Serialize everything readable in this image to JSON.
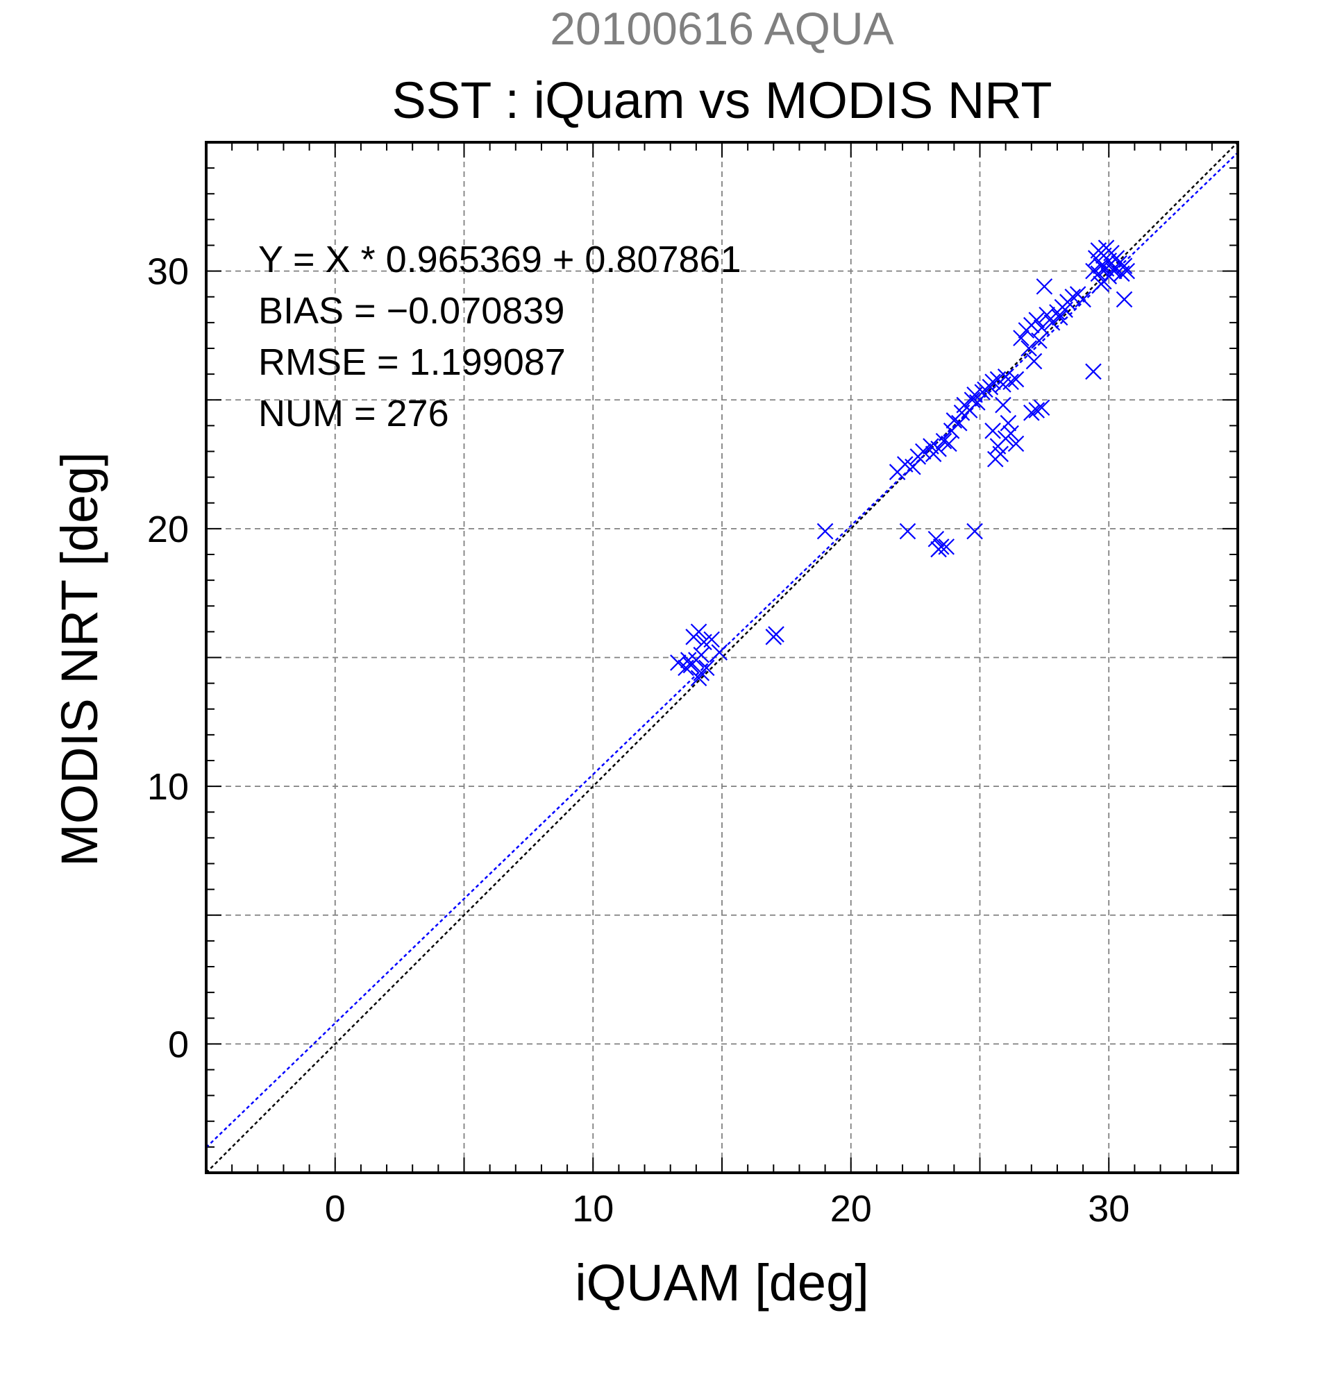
{
  "chart_data": {
    "type": "scatter",
    "supertitle": "20100616 AQUA",
    "title": "SST : iQuam vs MODIS NRT",
    "xlabel": "iQUAM [deg]",
    "ylabel": "MODIS NRT [deg]",
    "xlim": [
      -5,
      35
    ],
    "ylim": [
      -5,
      35
    ],
    "xticks": [
      0,
      10,
      20,
      30
    ],
    "yticks": [
      0,
      10,
      20,
      30
    ],
    "grid": true,
    "stats": {
      "fit": "Y = X * 0.965369 + 0.807861",
      "bias": "BIAS = −0.070839",
      "rmse": "RMSE = 1.199087",
      "num": "NUM = 276"
    },
    "fit_line": {
      "slope": 0.965369,
      "intercept": 0.807861
    },
    "colors": {
      "points": "#0000ff",
      "fit_line": "#0000ff",
      "identity_line": "#000000",
      "supertitle": "#808080",
      "grid": "#808080"
    },
    "points": [
      [
        13.3,
        14.8
      ],
      [
        13.6,
        14.6
      ],
      [
        13.8,
        14.7
      ],
      [
        14.0,
        14.9
      ],
      [
        14.2,
        14.4
      ],
      [
        14.1,
        14.2
      ],
      [
        13.9,
        15.8
      ],
      [
        14.1,
        16.0
      ],
      [
        14.3,
        15.6
      ],
      [
        14.6,
        15.7
      ],
      [
        14.9,
        15.2
      ],
      [
        14.4,
        14.6
      ],
      [
        13.7,
        14.9
      ],
      [
        14.2,
        15.1
      ],
      [
        17.0,
        15.8
      ],
      [
        17.1,
        15.9
      ],
      [
        19.0,
        19.9
      ],
      [
        22.2,
        19.9
      ],
      [
        23.3,
        19.6
      ],
      [
        23.5,
        19.3
      ],
      [
        23.7,
        19.3
      ],
      [
        23.4,
        19.2
      ],
      [
        24.8,
        19.9
      ],
      [
        21.8,
        22.2
      ],
      [
        22.1,
        22.5
      ],
      [
        22.4,
        22.4
      ],
      [
        22.6,
        22.8
      ],
      [
        22.8,
        23.0
      ],
      [
        23.1,
        23.2
      ],
      [
        23.2,
        22.9
      ],
      [
        23.4,
        23.1
      ],
      [
        23.6,
        23.4
      ],
      [
        23.8,
        23.3
      ],
      [
        23.9,
        23.8
      ],
      [
        24.0,
        24.2
      ],
      [
        24.2,
        24.1
      ],
      [
        24.3,
        24.5
      ],
      [
        24.4,
        24.8
      ],
      [
        24.6,
        24.6
      ],
      [
        24.7,
        25.0
      ],
      [
        24.8,
        25.2
      ],
      [
        24.9,
        24.9
      ],
      [
        25.1,
        25.3
      ],
      [
        25.2,
        25.4
      ],
      [
        25.4,
        25.5
      ],
      [
        25.5,
        25.7
      ],
      [
        25.7,
        25.8
      ],
      [
        25.9,
        25.6
      ],
      [
        26.0,
        25.9
      ],
      [
        26.2,
        25.7
      ],
      [
        26.4,
        25.8
      ],
      [
        25.5,
        23.8
      ],
      [
        25.7,
        23.2
      ],
      [
        25.8,
        22.9
      ],
      [
        25.6,
        22.7
      ],
      [
        26.0,
        23.5
      ],
      [
        26.2,
        23.7
      ],
      [
        26.4,
        23.3
      ],
      [
        26.1,
        24.1
      ],
      [
        25.9,
        24.8
      ],
      [
        27.0,
        24.5
      ],
      [
        27.2,
        24.6
      ],
      [
        27.4,
        24.7
      ],
      [
        26.6,
        27.4
      ],
      [
        26.8,
        27.7
      ],
      [
        27.0,
        27.9
      ],
      [
        27.2,
        28.1
      ],
      [
        27.4,
        27.8
      ],
      [
        27.6,
        28.3
      ],
      [
        27.8,
        28.0
      ],
      [
        28.0,
        28.4
      ],
      [
        28.2,
        28.6
      ],
      [
        28.4,
        28.8
      ],
      [
        28.6,
        29.0
      ],
      [
        28.8,
        29.1
      ],
      [
        29.0,
        28.9
      ],
      [
        27.5,
        29.4
      ],
      [
        26.9,
        27.0
      ],
      [
        27.1,
        26.5
      ],
      [
        27.3,
        27.3
      ],
      [
        28.1,
        28.2
      ],
      [
        28.3,
        28.5
      ],
      [
        29.4,
        26.1
      ],
      [
        29.5,
        30.5
      ],
      [
        29.6,
        30.8
      ],
      [
        29.7,
        30.2
      ],
      [
        29.8,
        30.6
      ],
      [
        29.9,
        30.9
      ],
      [
        30.0,
        30.4
      ],
      [
        30.1,
        30.7
      ],
      [
        30.2,
        30.1
      ],
      [
        30.3,
        30.5
      ],
      [
        29.6,
        29.9
      ],
      [
        29.8,
        29.6
      ],
      [
        30.0,
        29.8
      ],
      [
        30.2,
        30.0
      ],
      [
        30.4,
        30.3
      ],
      [
        30.6,
        30.2
      ],
      [
        30.7,
        30.0
      ],
      [
        30.5,
        29.9
      ],
      [
        29.9,
        30.1
      ],
      [
        30.1,
        30.3
      ],
      [
        30.6,
        28.9
      ],
      [
        29.4,
        30.0
      ],
      [
        29.7,
        29.5
      ]
    ]
  }
}
